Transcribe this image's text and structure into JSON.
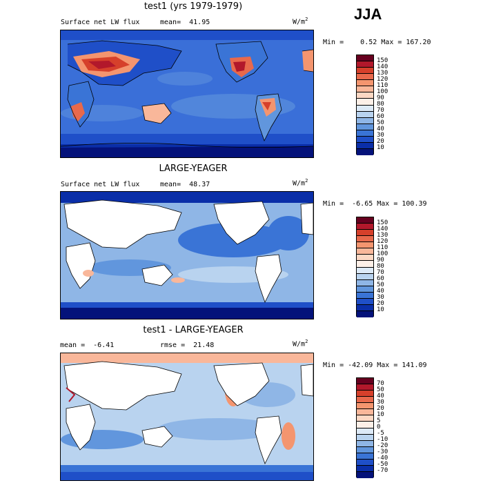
{
  "season": "JJA",
  "panels": [
    {
      "title": "test1 (yrs 1979-1979)",
      "left_label": "Surface net LW flux",
      "stat_text": "mean=  41.95",
      "units": "W/m",
      "units_sup": "2",
      "minmax": "Min =    0.52 Max = 167.20",
      "colorbar_labels": [
        "150",
        "140",
        "130",
        "120",
        "110",
        "100",
        "90",
        "80",
        "70",
        "60",
        "50",
        "40",
        "30",
        "20",
        "10"
      ],
      "colorbar_colors": [
        "#67001f",
        "#b2182b",
        "#d6402b",
        "#e8694c",
        "#f4956f",
        "#f9b79a",
        "#fcd8c4",
        "#fdf0e8",
        "#ddeaf7",
        "#b9d3ef",
        "#8fb6e6",
        "#6196dd",
        "#3a74d6",
        "#1f4fc8",
        "#0a2ea8",
        "#04127a"
      ],
      "base_color": "#2f63d6"
    },
    {
      "title": "LARGE-YEAGER",
      "left_label": "Surface net LW flux",
      "stat_text": "mean=  48.37",
      "units": "W/m",
      "units_sup": "2",
      "minmax": "Min =  -6.65 Max = 100.39",
      "colorbar_labels": [
        "150",
        "140",
        "130",
        "120",
        "110",
        "100",
        "90",
        "80",
        "70",
        "60",
        "50",
        "40",
        "30",
        "20",
        "10"
      ],
      "colorbar_colors": [
        "#67001f",
        "#b2182b",
        "#d6402b",
        "#e8694c",
        "#f4956f",
        "#f9b79a",
        "#fcd8c4",
        "#fdf0e8",
        "#ddeaf7",
        "#b9d3ef",
        "#8fb6e6",
        "#6196dd",
        "#3a74d6",
        "#1f4fc8",
        "#0a2ea8",
        "#04127a"
      ],
      "base_color": "#8fb6e6"
    },
    {
      "title": "test1 - LARGE-YEAGER",
      "left_label": "mean =  -6.41",
      "stat_text": "rmse =  21.48",
      "units": "W/m",
      "units_sup": "2",
      "minmax": "Min = -42.09 Max = 141.09",
      "colorbar_labels": [
        "70",
        "50",
        "40",
        "30",
        "20",
        "10",
        "5",
        "0",
        "-5",
        "-10",
        "-20",
        "-30",
        "-40",
        "-50",
        "-70"
      ],
      "colorbar_colors": [
        "#67001f",
        "#b2182b",
        "#d6402b",
        "#e8694c",
        "#f4956f",
        "#f9b79a",
        "#fcd8c4",
        "#fdf0e8",
        "#ddeaf7",
        "#b9d3ef",
        "#8fb6e6",
        "#6196dd",
        "#3a74d6",
        "#1f4fc8",
        "#0a2ea8",
        "#04127a"
      ],
      "base_color": "#8fb6e6"
    }
  ]
}
